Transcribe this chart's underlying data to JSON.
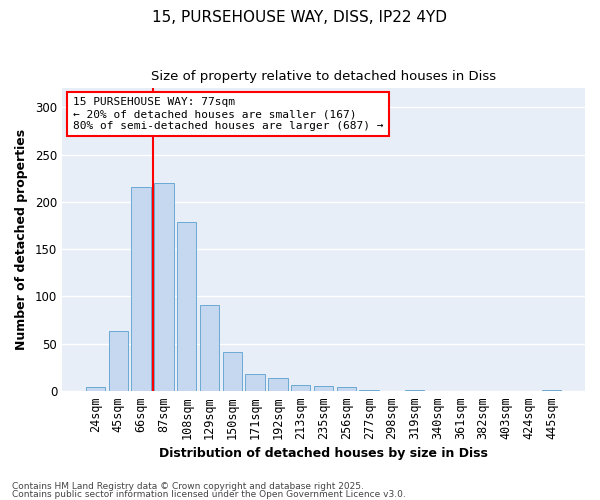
{
  "title1": "15, PURSEHOUSE WAY, DISS, IP22 4YD",
  "title2": "Size of property relative to detached houses in Diss",
  "xlabel": "Distribution of detached houses by size in Diss",
  "ylabel": "Number of detached properties",
  "categories": [
    "24sqm",
    "45sqm",
    "66sqm",
    "87sqm",
    "108sqm",
    "129sqm",
    "150sqm",
    "171sqm",
    "192sqm",
    "213sqm",
    "235sqm",
    "256sqm",
    "277sqm",
    "298sqm",
    "319sqm",
    "340sqm",
    "361sqm",
    "382sqm",
    "403sqm",
    "424sqm",
    "445sqm"
  ],
  "values": [
    4,
    63,
    216,
    220,
    179,
    91,
    41,
    18,
    14,
    6,
    5,
    4,
    1,
    0,
    1,
    0,
    0,
    0,
    0,
    0,
    1
  ],
  "bar_color": "#c5d8f0",
  "bar_edge_color": "#6aaad4",
  "vline_x": 2.5,
  "vline_color": "red",
  "ylim": [
    0,
    320
  ],
  "yticks": [
    0,
    50,
    100,
    150,
    200,
    250,
    300
  ],
  "annotation_text": "15 PURSEHOUSE WAY: 77sqm\n← 20% of detached houses are smaller (167)\n80% of semi-detached houses are larger (687) →",
  "annotation_box_color": "white",
  "annotation_box_edge_color": "red",
  "footer1": "Contains HM Land Registry data © Crown copyright and database right 2025.",
  "footer2": "Contains public sector information licensed under the Open Government Licence v3.0.",
  "bg_color": "#ffffff",
  "plot_bg_color": "#e8eef8",
  "grid_color": "#ffffff"
}
